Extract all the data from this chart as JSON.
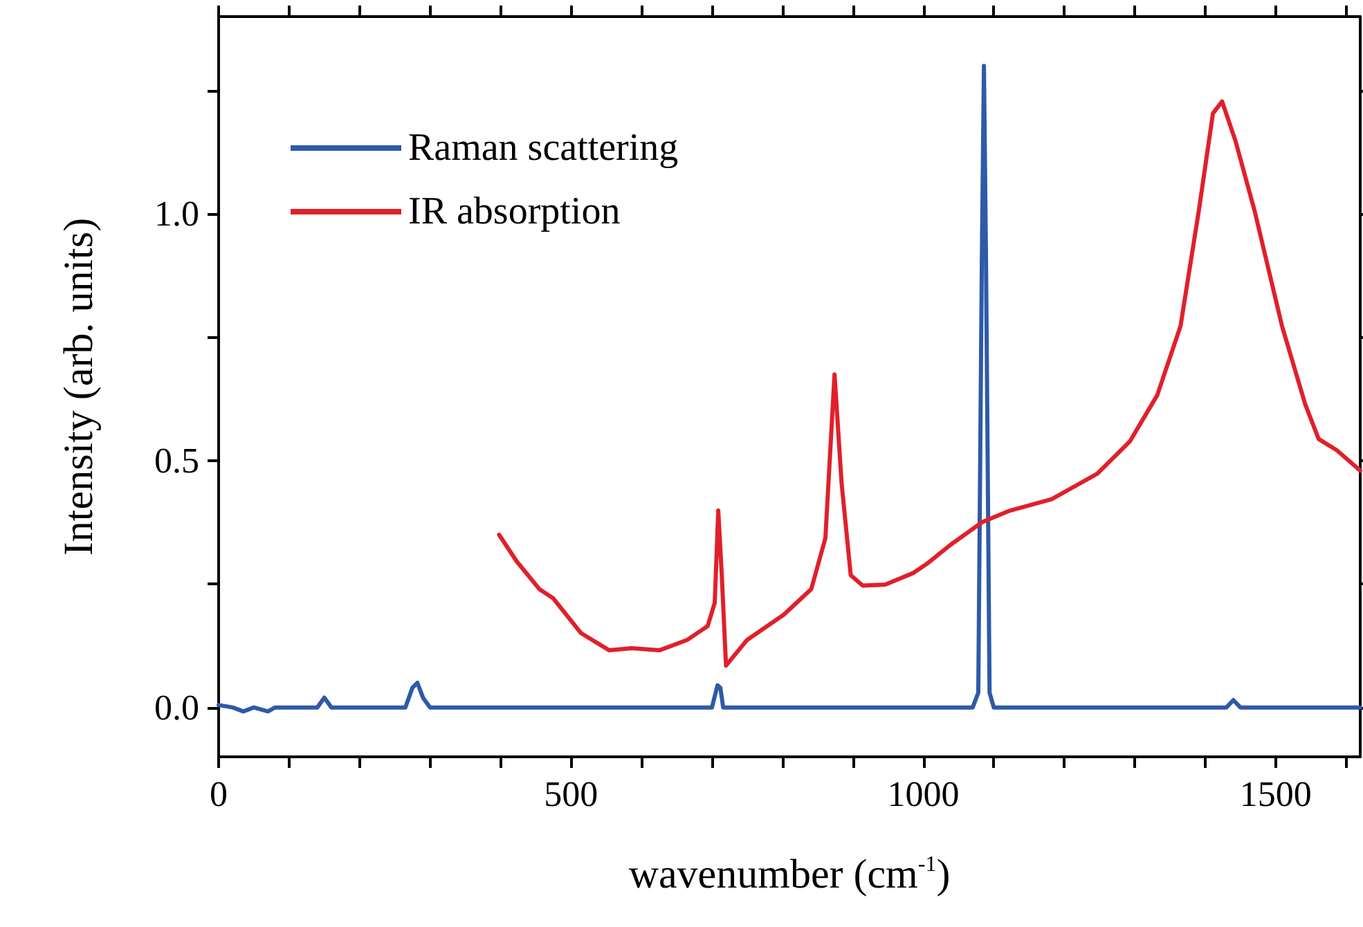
{
  "chart_data": {
    "type": "line",
    "xlabel": "wavenumber (cm$^{-1}$)",
    "ylabel": "Intensity (arb. units)",
    "xlim": [
      0,
      1620
    ],
    "ylim": [
      -0.1,
      1.4
    ],
    "xticks": [
      0,
      {
        "value": 100,
        "label": null
      },
      {
        "value": 200,
        "label": null
      },
      {
        "value": 300,
        "label": null
      },
      {
        "value": 400,
        "label": null
      },
      500,
      {
        "value": 600,
        "label": null
      },
      {
        "value": 700,
        "label": null
      },
      {
        "value": 800,
        "label": null
      },
      {
        "value": 900,
        "label": null
      },
      1000,
      {
        "value": 1100,
        "label": null
      },
      {
        "value": 1200,
        "label": null
      },
      {
        "value": 1300,
        "label": null
      },
      {
        "value": 1400,
        "label": null
      },
      1500,
      {
        "value": 1600,
        "label": null
      }
    ],
    "yticks": [
      {
        "value": 0,
        "label": "0.0"
      },
      {
        "value": 0.25,
        "label": null
      },
      {
        "value": 0.5,
        "label": "0.5"
      },
      {
        "value": 0.75,
        "label": null
      },
      {
        "value": 1,
        "label": "1.0"
      },
      {
        "value": 1.25,
        "label": null
      }
    ],
    "grid": false,
    "legend": "top left",
    "marker": "none",
    "line_style": "solid",
    "series": [
      {
        "name": "Raman scattering",
        "color": "#2e5aa8",
        "x": [
          0,
          20,
          35,
          50,
          70,
          80,
          140,
          150,
          160,
          265,
          275,
          282,
          290,
          300,
          700,
          708,
          712,
          716,
          1070,
          1078,
          1083,
          1086,
          1089,
          1094,
          1100,
          1430,
          1440,
          1450,
          1620
        ],
        "values": [
          0.005,
          0,
          -0.008,
          0,
          -0.008,
          0,
          0,
          0.02,
          0,
          0,
          0.04,
          0.05,
          0.02,
          0,
          0,
          0.045,
          0.04,
          0,
          0,
          0.03,
          0.9,
          1.3,
          0.9,
          0.03,
          0,
          0,
          0.015,
          0,
          0
        ]
      },
      {
        "name": "IR absorption",
        "color": "#e0202a",
        "x": [
          398,
          423,
          455,
          475,
          514,
          554,
          586,
          626,
          665,
          694,
          704,
          709,
          714,
          720,
          750,
          802,
          841,
          861,
          874,
          884,
          897,
          914,
          946,
          985,
          1005,
          1038,
          1084,
          1123,
          1182,
          1247,
          1293,
          1332,
          1365,
          1391,
          1411,
          1424,
          1443,
          1470,
          1509,
          1542,
          1561,
          1587,
          1620
        ],
        "values": [
          0.35,
          0.296,
          0.24,
          0.221,
          0.151,
          0.116,
          0.12,
          0.116,
          0.137,
          0.165,
          0.212,
          0.399,
          0.268,
          0.085,
          0.137,
          0.188,
          0.24,
          0.343,
          0.675,
          0.455,
          0.268,
          0.247,
          0.249,
          0.272,
          0.291,
          0.329,
          0.376,
          0.399,
          0.422,
          0.474,
          0.539,
          0.633,
          0.773,
          1.007,
          1.204,
          1.228,
          1.148,
          1.007,
          0.773,
          0.614,
          0.544,
          0.521,
          0.48
        ]
      }
    ]
  }
}
